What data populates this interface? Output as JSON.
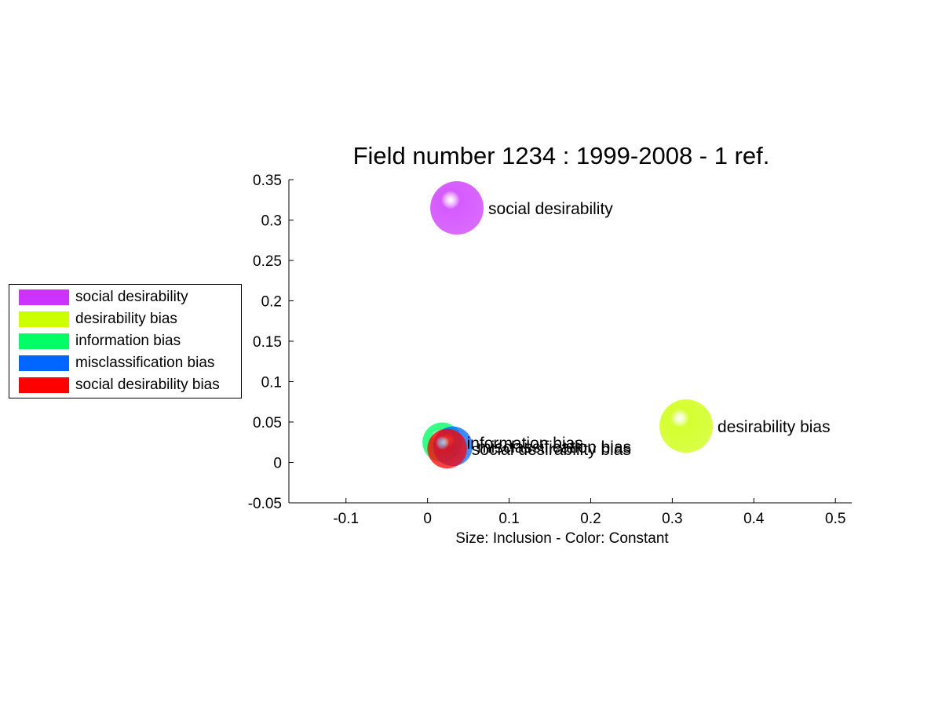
{
  "chart_data": {
    "type": "scatter",
    "title": "Field number 1234 : 1999-2008  - 1 ref.",
    "xlabel": "Size: Inclusion - Color: Constant",
    "ylabel": "",
    "xlim": [
      -0.17,
      0.52
    ],
    "ylim": [
      -0.05,
      0.35
    ],
    "xticks": [
      "-0.1",
      "0",
      "0.1",
      "0.2",
      "0.3",
      "0.4",
      "0.5"
    ],
    "xtick_values": [
      -0.1,
      0,
      0.1,
      0.2,
      0.3,
      0.4,
      0.5
    ],
    "yticks": [
      "-0.05",
      "0",
      "0.05",
      "0.1",
      "0.15",
      "0.2",
      "0.25",
      "0.3",
      "0.35"
    ],
    "ytick_values": [
      -0.05,
      0,
      0.05,
      0.1,
      0.15,
      0.2,
      0.25,
      0.3,
      0.35
    ],
    "grid": false,
    "legend_position": "left",
    "series": [
      {
        "name": "social desirability",
        "x": 0.036,
        "y": 0.315,
        "size": 1.0,
        "color": "#cc33ff"
      },
      {
        "name": "desirability bias",
        "x": 0.317,
        "y": 0.045,
        "size": 1.0,
        "color": "#ccff00"
      },
      {
        "name": "information bias",
        "x": 0.018,
        "y": 0.025,
        "size": 0.55,
        "color": "#00ff66"
      },
      {
        "name": "misclassification bias",
        "x": 0.031,
        "y": 0.02,
        "size": 0.55,
        "color": "#0066ff"
      },
      {
        "name": "social desirability bias",
        "x": 0.024,
        "y": 0.017,
        "size": 0.55,
        "color": "#ff0000"
      }
    ]
  }
}
